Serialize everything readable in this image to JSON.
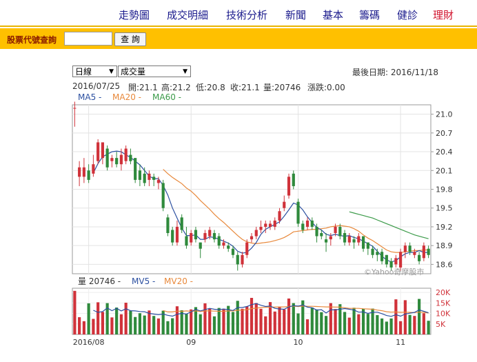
{
  "nav": {
    "items": [
      {
        "label": "走勢圖",
        "active": false
      },
      {
        "label": "成交明細",
        "active": false
      },
      {
        "label": "技術分析",
        "active": false
      },
      {
        "label": "新聞",
        "active": false
      },
      {
        "label": "基本",
        "active": false
      },
      {
        "label": "籌碼",
        "active": false
      },
      {
        "label": "健診",
        "active": false
      },
      {
        "label": "理財",
        "active": true
      }
    ]
  },
  "query": {
    "label": "股票代號查詢",
    "input_value": "",
    "button": "查 詢"
  },
  "controls": {
    "period": "日線",
    "indicator": "成交量",
    "last_date": "最後日期: 2016/11/18"
  },
  "info": {
    "date": "2016/07/25",
    "open": "開:21.1",
    "high": "高:21.2",
    "low": "低:20.8",
    "close": "收:21.1",
    "volume": "量:20746",
    "change": "漲跌:0.00"
  },
  "legend": {
    "ma5": "MA5 -",
    "ma20": "MA20 -",
    "ma60": "MA60 -"
  },
  "vol_legend": {
    "vol": "量 20746 -",
    "mv5": "MV5 -",
    "mv20": "MV20 -"
  },
  "watermark": "©Yahoo奇摩股市",
  "colors": {
    "up": "#d0323a",
    "down": "#2f8a3c",
    "ma5": "#2b4fa0",
    "ma20": "#e8883a",
    "ma60": "#3a9a48",
    "brand": "#ffc000",
    "nav": "#1a1a8c"
  },
  "chart_data": {
    "type": "candlestick",
    "price_ticks": [
      "21.0",
      "20.7",
      "20.4",
      "20.1",
      "19.8",
      "19.5",
      "19.2",
      "18.9",
      "18.6"
    ],
    "volume_ticks": [
      "20K",
      "15K",
      "10K",
      "5K"
    ],
    "x_ticks": [
      "2016/08",
      "09",
      "10",
      "11"
    ],
    "price_ylim": [
      18.45,
      21.15
    ],
    "volume_ylim": [
      0,
      22000
    ],
    "candles": [
      [
        21.1,
        21.1,
        21.2,
        20.8
      ],
      [
        20.0,
        20.15,
        20.25,
        19.85
      ],
      [
        20.0,
        20.15,
        20.3,
        19.9
      ],
      [
        20.1,
        19.95,
        20.2,
        19.9
      ],
      [
        20.05,
        20.2,
        20.35,
        20.0
      ],
      [
        20.25,
        20.55,
        20.6,
        20.2
      ],
      [
        20.3,
        20.55,
        20.55,
        20.2
      ],
      [
        20.45,
        20.15,
        20.5,
        20.1
      ],
      [
        20.25,
        20.3,
        20.35,
        20.15
      ],
      [
        20.3,
        20.2,
        20.4,
        20.15
      ],
      [
        20.2,
        20.35,
        20.45,
        20.1
      ],
      [
        20.25,
        20.45,
        20.5,
        20.2
      ],
      [
        20.35,
        20.25,
        20.45,
        20.2
      ],
      [
        20.3,
        19.95,
        20.3,
        19.9
      ],
      [
        20.1,
        19.95,
        20.2,
        19.85
      ],
      [
        20.05,
        19.9,
        20.15,
        19.85
      ],
      [
        19.95,
        20.05,
        20.1,
        19.85
      ],
      [
        20.0,
        19.95,
        20.05,
        19.85
      ],
      [
        19.9,
        19.95,
        20.0,
        19.8
      ],
      [
        19.9,
        19.5,
        19.95,
        19.45
      ],
      [
        19.35,
        19.1,
        19.4,
        19.05
      ],
      [
        19.15,
        18.95,
        19.2,
        18.9
      ],
      [
        18.95,
        19.2,
        19.3,
        18.9
      ],
      [
        19.35,
        19.15,
        19.4,
        19.1
      ],
      [
        19.05,
        18.9,
        19.2,
        18.85
      ],
      [
        18.95,
        19.1,
        19.15,
        18.9
      ],
      [
        19.15,
        19.0,
        19.2,
        18.95
      ],
      [
        18.95,
        18.85,
        18.95,
        18.7
      ],
      [
        19.0,
        19.1,
        19.15,
        18.95
      ],
      [
        19.05,
        19.15,
        19.2,
        19.0
      ],
      [
        19.1,
        19.0,
        19.15,
        18.95
      ],
      [
        19.05,
        18.9,
        19.1,
        18.85
      ],
      [
        18.9,
        18.95,
        19.0,
        18.85
      ],
      [
        18.9,
        18.85,
        18.95,
        18.8
      ],
      [
        18.85,
        18.75,
        18.9,
        18.7
      ],
      [
        18.75,
        18.6,
        18.8,
        18.5
      ],
      [
        18.6,
        18.75,
        18.8,
        18.55
      ],
      [
        18.75,
        18.95,
        19.0,
        18.7
      ],
      [
        19.0,
        19.05,
        19.1,
        18.95
      ],
      [
        19.05,
        19.15,
        19.2,
        19.0
      ],
      [
        19.15,
        19.2,
        19.3,
        19.1
      ],
      [
        19.2,
        19.25,
        19.3,
        19.1
      ],
      [
        19.2,
        19.25,
        19.3,
        19.15
      ],
      [
        19.2,
        19.3,
        19.35,
        19.15
      ],
      [
        19.3,
        19.45,
        19.5,
        19.25
      ],
      [
        19.5,
        19.6,
        19.7,
        19.45
      ],
      [
        19.7,
        20.0,
        20.05,
        19.65
      ],
      [
        20.05,
        19.85,
        20.1,
        19.8
      ],
      [
        19.6,
        19.25,
        19.65,
        19.2
      ],
      [
        19.25,
        19.15,
        19.3,
        19.1
      ],
      [
        19.2,
        19.3,
        19.35,
        19.15
      ],
      [
        19.3,
        19.2,
        19.35,
        19.15
      ],
      [
        19.2,
        19.05,
        19.25,
        18.95
      ],
      [
        19.1,
        19.05,
        19.15,
        19.0
      ],
      [
        19.0,
        18.95,
        19.1,
        18.8
      ],
      [
        19.0,
        19.05,
        19.1,
        18.9
      ],
      [
        19.1,
        19.2,
        19.25,
        19.05
      ],
      [
        19.2,
        19.05,
        19.25,
        19.0
      ],
      [
        19.1,
        18.95,
        19.15,
        18.9
      ],
      [
        18.95,
        19.05,
        19.1,
        18.9
      ],
      [
        19.0,
        18.95,
        19.05,
        18.85
      ],
      [
        18.95,
        19.05,
        19.1,
        18.9
      ],
      [
        19.05,
        18.85,
        19.05,
        18.8
      ],
      [
        18.95,
        18.85,
        18.95,
        18.75
      ],
      [
        18.85,
        18.75,
        18.9,
        18.7
      ],
      [
        18.8,
        18.75,
        18.85,
        18.65
      ],
      [
        18.8,
        18.65,
        18.85,
        18.6
      ],
      [
        18.75,
        18.6,
        18.75,
        18.55
      ],
      [
        18.65,
        18.55,
        18.7,
        18.5
      ],
      [
        18.6,
        18.7,
        18.75,
        18.55
      ],
      [
        18.55,
        18.8,
        18.85,
        18.5
      ],
      [
        18.8,
        18.9,
        18.95,
        18.7
      ],
      [
        18.9,
        18.8,
        18.95,
        18.75
      ],
      [
        18.75,
        18.8,
        18.85,
        18.7
      ],
      [
        18.75,
        18.65,
        18.8,
        18.6
      ],
      [
        18.7,
        18.9,
        18.95,
        18.65
      ],
      [
        18.85,
        18.75,
        18.9,
        18.7
      ]
    ],
    "ma5": [
      null,
      null,
      null,
      null,
      20.06,
      20.21,
      20.32,
      20.36,
      20.4,
      20.41,
      20.4,
      20.35,
      20.31,
      20.25,
      20.19,
      20.1,
      20.01,
      19.97,
      19.97,
      19.86,
      19.71,
      19.5,
      19.34,
      19.18,
      19.06,
      19.06,
      19.07,
      19.0,
      19.0,
      19.04,
      19.03,
      19.0,
      18.97,
      18.94,
      18.89,
      18.81,
      18.78,
      18.79,
      18.86,
      18.95,
      19.08,
      19.16,
      19.2,
      19.24,
      19.28,
      19.37,
      19.47,
      19.58,
      19.55,
      19.47,
      19.36,
      19.27,
      19.19,
      19.15,
      19.08,
      19.06,
      19.08,
      19.06,
      19.05,
      19.06,
      19.03,
      19.01,
      18.97,
      18.93,
      18.89,
      18.81,
      18.73,
      18.67,
      18.64,
      18.66,
      18.72,
      18.77,
      18.79,
      18.79,
      18.82,
      18.79,
      18.79
    ],
    "ma20": [
      null,
      null,
      null,
      null,
      null,
      null,
      null,
      null,
      null,
      null,
      null,
      null,
      null,
      null,
      null,
      null,
      null,
      null,
      null,
      20.12,
      20.05,
      19.99,
      19.94,
      19.89,
      19.82,
      19.77,
      19.7,
      19.62,
      19.55,
      19.48,
      19.4,
      19.33,
      19.27,
      19.2,
      19.13,
      19.06,
      19.0,
      18.96,
      18.94,
      18.93,
      18.94,
      18.95,
      18.96,
      18.98,
      19.0,
      19.03,
      19.07,
      19.12,
      19.13,
      19.14,
      19.15,
      19.16,
      19.16,
      19.17,
      19.18,
      19.2,
      19.21,
      19.22,
      19.21,
      19.2,
      19.17,
      19.13,
      19.07,
      19.02,
      18.98,
      18.93,
      18.88,
      18.83,
      18.8,
      18.79,
      18.79,
      18.8,
      18.81,
      18.82,
      18.82,
      18.83,
      18.83
    ],
    "ma60": [
      null,
      null,
      null,
      null,
      null,
      null,
      null,
      null,
      null,
      null,
      null,
      null,
      null,
      null,
      null,
      null,
      null,
      null,
      null,
      null,
      null,
      null,
      null,
      null,
      null,
      null,
      null,
      null,
      null,
      null,
      null,
      null,
      null,
      null,
      null,
      null,
      null,
      null,
      null,
      null,
      null,
      null,
      null,
      null,
      null,
      null,
      null,
      null,
      null,
      null,
      null,
      null,
      null,
      null,
      null,
      null,
      null,
      null,
      null,
      19.44,
      19.42,
      19.4,
      19.38,
      19.36,
      19.34,
      19.31,
      19.28,
      19.25,
      19.22,
      19.19,
      19.16,
      19.13,
      19.1,
      19.07,
      19.05,
      19.03,
      19.01
    ],
    "volumes": [
      20746,
      8200,
      6300,
      14800,
      7400,
      15300,
      10700,
      14900,
      8100,
      12800,
      9600,
      15100,
      11200,
      8300,
      10100,
      9000,
      11400,
      8800,
      7600,
      11300,
      6300,
      7700,
      13400,
      11500,
      9800,
      11900,
      13000,
      9600,
      14800,
      12200,
      8600,
      12600,
      11900,
      13600,
      10700,
      16000,
      12200,
      13300,
      17400,
      14900,
      12200,
      8600,
      15400,
      10900,
      13300,
      11900,
      17100,
      14900,
      10000,
      16200,
      7200,
      12800,
      11900,
      10600,
      8800,
      14900,
      12100,
      14400,
      10700,
      8000,
      12700,
      9600,
      12300,
      9800,
      12300,
      9200,
      7600,
      6100,
      7600,
      16700,
      6300,
      16300,
      9300,
      8800,
      16900,
      10100,
      6500
    ],
    "mv5": [
      null,
      null,
      null,
      null,
      11500,
      10500,
      10900,
      12600,
      11300,
      12400,
      11200,
      12200,
      11300,
      11200,
      10900,
      10800,
      10000,
      9700,
      9400,
      9700,
      9100,
      8700,
      9600,
      10000,
      9700,
      10800,
      11900,
      11200,
      11800,
      12400,
      12000,
      11800,
      12100,
      11800,
      11400,
      12800,
      12800,
      13300,
      14200,
      14700,
      13900,
      13300,
      13500,
      12400,
      12100,
      12000,
      13100,
      13700,
      13500,
      14000,
      13000,
      12700,
      11600,
      11800,
      10200,
      11700,
      11700,
      12000,
      12300,
      12000,
      11600,
      10600,
      10700,
      10000,
      10500,
      10600,
      9900,
      9000,
      8600,
      9400,
      8700,
      9700,
      10100,
      10500,
      11700,
      11000,
      10300
    ],
    "mv20": [
      null,
      null,
      null,
      null,
      null,
      null,
      null,
      null,
      null,
      null,
      null,
      null,
      null,
      null,
      null,
      null,
      null,
      null,
      null,
      11400,
      10700,
      10700,
      11100,
      11000,
      11200,
      11000,
      11200,
      10900,
      11200,
      11200,
      11100,
      11000,
      11000,
      11200,
      11200,
      11500,
      11600,
      11800,
      12300,
      12500,
      12800,
      12900,
      13000,
      13000,
      13100,
      13100,
      13300,
      13500,
      13300,
      13500,
      13400,
      13400,
      13300,
      13200,
      13100,
      13100,
      13000,
      13000,
      12700,
      12400,
      12400,
      12400,
      12200,
      12100,
      12000,
      11600,
      11300,
      10800,
      10600,
      10700,
      10500,
      10600,
      10500,
      10400,
      10600,
      10500,
      10200
    ]
  }
}
